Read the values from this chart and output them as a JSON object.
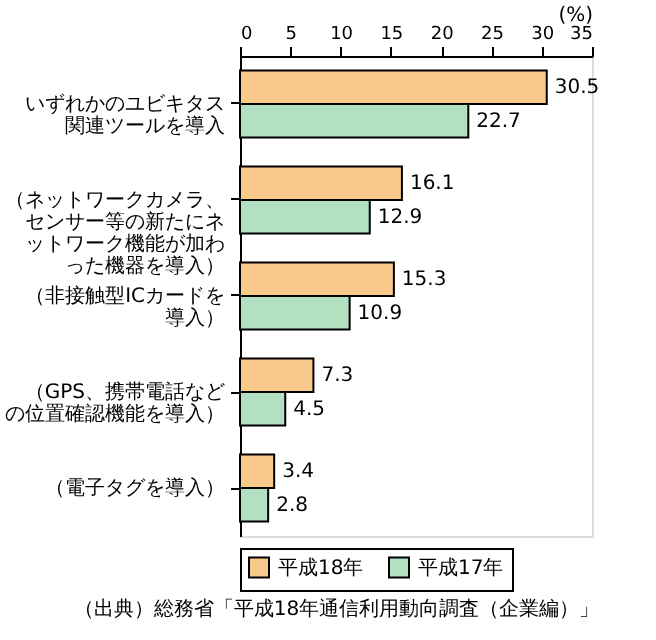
{
  "chart_data": {
    "type": "bar",
    "orientation": "horizontal",
    "xlabel": "(%)",
    "categories": [
      "いずれかのユビキタス関連ツールを導入",
      "（ネットワークカメラ、センサー等の新たにネットワーク機能が加わった機器を導入）",
      "（非接触型ICカードを導入）",
      "（GPS、携帯電話などの位置確認機能を導入）",
      "（電子タグを導入）"
    ],
    "series": [
      {
        "name": "平成18年",
        "color": "#f9c98a",
        "values": [
          30.5,
          16.1,
          15.3,
          7.3,
          3.4
        ]
      },
      {
        "name": "平成17年",
        "color": "#b3e0c0",
        "values": [
          22.7,
          12.9,
          10.9,
          4.5,
          2.8
        ]
      }
    ],
    "xlim": [
      0,
      35
    ],
    "xticks": [
      0,
      5,
      10,
      15,
      20,
      25,
      30,
      35
    ],
    "grid": false,
    "legend": "bottom",
    "data_labels": true,
    "annotations": [
      "（出典）総務省「平成18年通信利用動向調査（企業編）」"
    ]
  }
}
